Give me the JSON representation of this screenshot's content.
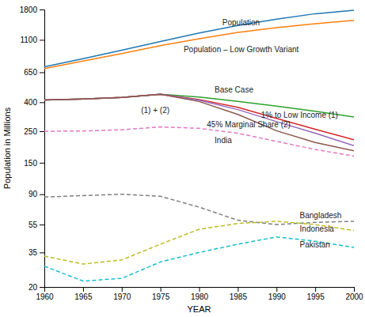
{
  "chart_data": {
    "type": "line",
    "log": "y",
    "grid": false,
    "xlabel": "YEAR",
    "ylabel": "Population in Millions",
    "x": [
      1960,
      1965,
      1970,
      1975,
      1980,
      1985,
      1990,
      1995,
      2000
    ],
    "xlim": [
      1960,
      2000
    ],
    "xticks": [
      1960,
      1965,
      1970,
      1975,
      1980,
      1985,
      1990,
      1995,
      2000
    ],
    "ylim": [
      20,
      1800
    ],
    "yticks": [
      20,
      35,
      55,
      90,
      150,
      250,
      400,
      650,
      1100,
      1800
    ],
    "series": [
      {
        "line_style": "solid",
        "values": [
          710,
          810,
          930,
          1070,
          1230,
          1390,
          1540,
          1680,
          1780
        ]
      },
      {
        "line_style": "solid",
        "values": [
          690,
          780,
          880,
          1000,
          1120,
          1240,
          1340,
          1430,
          1510
        ]
      },
      {
        "line_style": "solid",
        "values": [
          415,
          422,
          432,
          455,
          435,
          405,
          375,
          345,
          315
        ]
      },
      {
        "line_style": "solid",
        "values": [
          415,
          422,
          432,
          455,
          418,
          368,
          308,
          258,
          218
        ]
      },
      {
        "line_style": "solid",
        "values": [
          415,
          422,
          432,
          455,
          413,
          355,
          292,
          242,
          198
        ]
      },
      {
        "line_style": "solid",
        "values": [
          415,
          422,
          432,
          455,
          405,
          328,
          252,
          208,
          182
        ]
      },
      {
        "line_style": "dashed",
        "values": [
          250,
          251,
          256,
          268,
          262,
          242,
          212,
          186,
          167
        ]
      },
      {
        "line_style": "dashed",
        "values": [
          86,
          88,
          90,
          87,
          73,
          59,
          55,
          57,
          58
        ]
      },
      {
        "line_style": "dashed",
        "values": [
          33,
          29,
          31,
          40,
          51,
          56,
          58,
          55,
          50
        ]
      },
      {
        "line_style": "dashed",
        "values": [
          28,
          22,
          23,
          30,
          35,
          40,
          45,
          42,
          38
        ]
      }
    ],
    "annotations": [
      {
        "text": "Population",
        "x": 1983,
        "y": 1400
      },
      {
        "text": "Population – Low Growth Variant",
        "x": 1978,
        "y": 900
      },
      {
        "text": "Base Case",
        "x": 1982,
        "y": 470
      },
      {
        "text": "(1) + (2)",
        "x": 1972.5,
        "y": 335
      },
      {
        "text": "45% Marginal Share (2)",
        "x": 1981,
        "y": 268
      },
      {
        "text": "1% to Low Income (1)",
        "x": 1988,
        "y": 310
      },
      {
        "text": "India",
        "x": 1982,
        "y": 207
      },
      {
        "text": "Bangladesh",
        "x": 1993,
        "y": 61
      },
      {
        "text": "Indonesia",
        "x": 1993,
        "y": 49
      },
      {
        "text": "Pakistan",
        "x": 1993,
        "y": 38
      }
    ]
  }
}
